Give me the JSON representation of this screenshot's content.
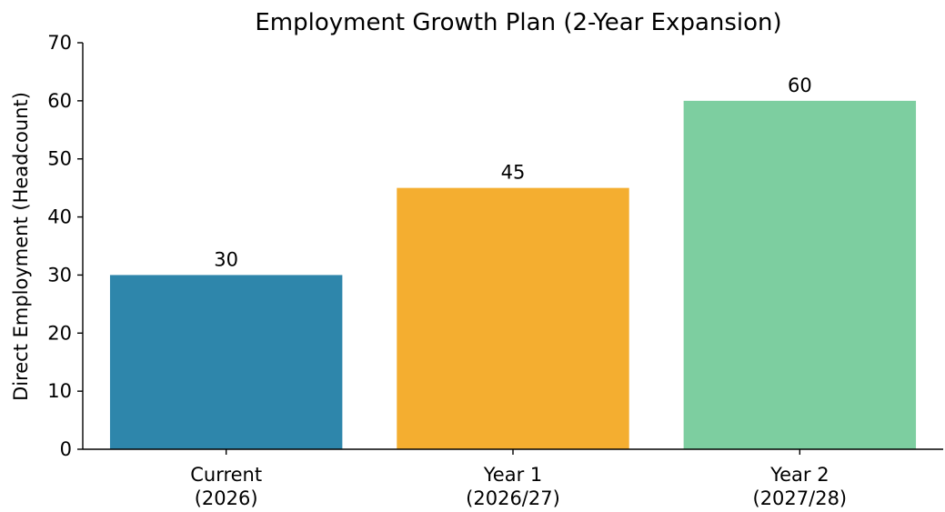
{
  "chart_data": {
    "type": "bar",
    "title": "Employment Growth Plan (2-Year Expansion)",
    "xlabel": "",
    "ylabel": "Direct Employment (Headcount)",
    "ylim": [
      0,
      70
    ],
    "yticks": [
      0,
      10,
      20,
      30,
      40,
      50,
      60,
      70
    ],
    "grid": false,
    "categories": [
      [
        "Current",
        "(2026)"
      ],
      [
        "Year 1",
        "(2026/27)"
      ],
      [
        "Year 2",
        "(2027/28)"
      ]
    ],
    "values": [
      30,
      45,
      60
    ],
    "value_labels": [
      "30",
      "45",
      "60"
    ],
    "colors": [
      "#2E86AB",
      "#F4AE30",
      "#7DCEA0"
    ]
  }
}
